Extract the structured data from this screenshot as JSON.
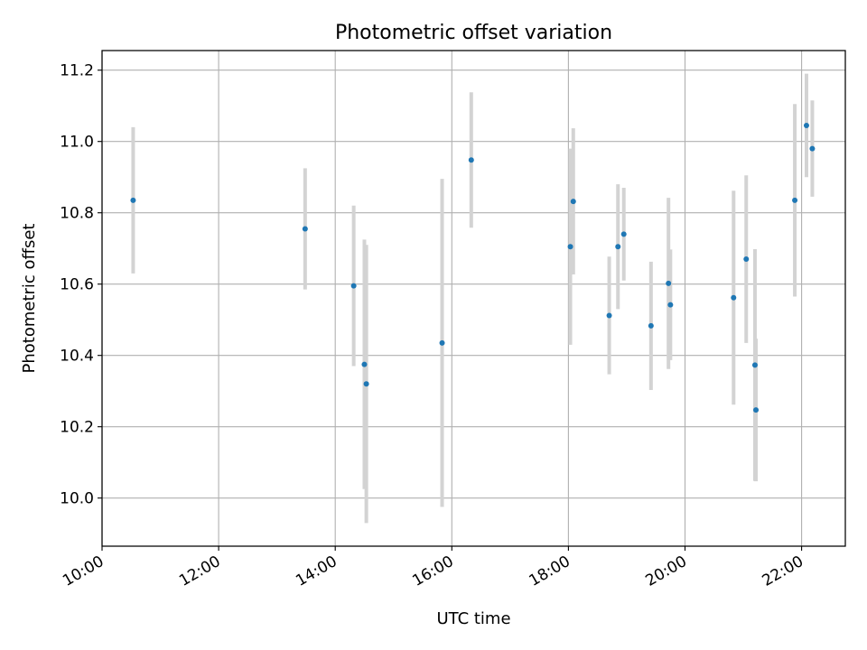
{
  "chart_data": {
    "type": "scatter",
    "title": "Photometric offset variation",
    "xlabel": "UTC time",
    "ylabel": "Photometric offset",
    "xlim": [
      "10:00",
      "22:45"
    ],
    "ylim": [
      9.865,
      11.255
    ],
    "x_ticks": [
      "10:00",
      "12:00",
      "14:00",
      "16:00",
      "18:00",
      "20:00",
      "22:00"
    ],
    "y_ticks": [
      "10.0",
      "10.2",
      "10.4",
      "10.6",
      "10.8",
      "11.0",
      "11.2"
    ],
    "grid": true,
    "point_color": "#1f77b4",
    "errorbar_color": "#d3d3d3",
    "points": [
      {
        "time": "10:32",
        "value": 10.835,
        "error": 0.205
      },
      {
        "time": "13:29",
        "value": 10.755,
        "error": 0.17
      },
      {
        "time": "14:19",
        "value": 10.595,
        "error": 0.225
      },
      {
        "time": "14:30",
        "value": 10.375,
        "error": 0.35
      },
      {
        "time": "14:32",
        "value": 10.32,
        "error": 0.39
      },
      {
        "time": "15:50",
        "value": 10.435,
        "error": 0.46
      },
      {
        "time": "16:20",
        "value": 10.948,
        "error": 0.19
      },
      {
        "time": "18:02",
        "value": 10.705,
        "error": 0.275
      },
      {
        "time": "18:05",
        "value": 10.832,
        "error": 0.205
      },
      {
        "time": "18:42",
        "value": 10.512,
        "error": 0.165
      },
      {
        "time": "18:51",
        "value": 10.705,
        "error": 0.175
      },
      {
        "time": "18:57",
        "value": 10.74,
        "error": 0.13
      },
      {
        "time": "19:25",
        "value": 10.483,
        "error": 0.18
      },
      {
        "time": "19:43",
        "value": 10.602,
        "error": 0.24
      },
      {
        "time": "19:45",
        "value": 10.542,
        "error": 0.155
      },
      {
        "time": "20:50",
        "value": 10.562,
        "error": 0.3
      },
      {
        "time": "21:03",
        "value": 10.67,
        "error": 0.235
      },
      {
        "time": "21:12",
        "value": 10.373,
        "error": 0.325
      },
      {
        "time": "21:13",
        "value": 10.247,
        "error": 0.2
      },
      {
        "time": "21:53",
        "value": 10.835,
        "error": 0.27
      },
      {
        "time": "22:05",
        "value": 11.045,
        "error": 0.145
      },
      {
        "time": "22:11",
        "value": 10.98,
        "error": 0.135
      }
    ]
  }
}
